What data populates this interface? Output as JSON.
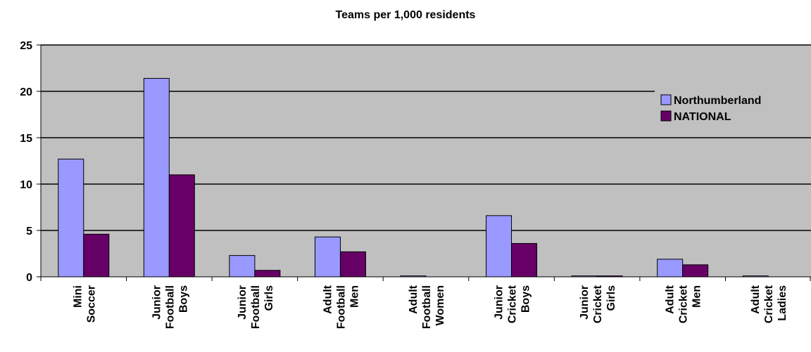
{
  "chart_data": {
    "type": "bar",
    "title": "Teams per 1,000 residents",
    "xlabel": "",
    "ylabel": "",
    "ylim": [
      0,
      25
    ],
    "yticks": [
      0,
      5,
      10,
      15,
      20,
      25
    ],
    "grid": true,
    "legend_position": "top-right",
    "categories": [
      [
        "Mini",
        "Soccer"
      ],
      [
        "Junior",
        "Football",
        "Boys"
      ],
      [
        "Junior",
        "Football",
        "Girls"
      ],
      [
        "Adult",
        "Football",
        "Men"
      ],
      [
        "Adult",
        "Football",
        "Women"
      ],
      [
        "Junior",
        "Cricket",
        "Boys"
      ],
      [
        "Junior",
        "Cricket",
        "Girls"
      ],
      [
        "Adult",
        "Cricket",
        "Men"
      ],
      [
        "Adult",
        "Cricket",
        "Ladies"
      ]
    ],
    "series": [
      {
        "name": "Northumberland",
        "color": "#9999ff",
        "values": [
          12.7,
          21.4,
          2.3,
          4.3,
          0.1,
          6.6,
          0.1,
          1.9,
          0.1
        ]
      },
      {
        "name": "NATIONAL",
        "color": "#660066",
        "values": [
          4.6,
          11.0,
          0.7,
          2.7,
          0.0,
          3.6,
          0.1,
          1.3,
          0.0
        ]
      }
    ],
    "plot_background": "#c0c0c0"
  }
}
